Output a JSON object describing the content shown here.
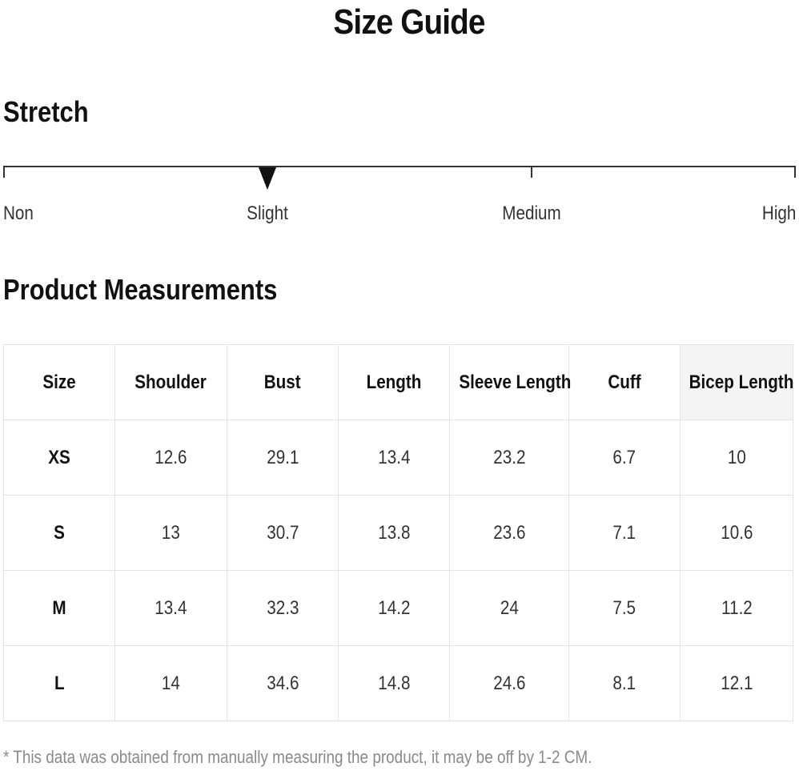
{
  "title": "Size Guide",
  "stretch": {
    "heading": "Stretch",
    "levels": [
      "Non",
      "Slight",
      "Medium",
      "High"
    ],
    "selected": "Slight"
  },
  "measurements": {
    "heading": "Product Measurements",
    "columns": [
      "Size",
      "Shoulder",
      "Bust",
      "Length",
      "Sleeve Length",
      "Cuff",
      "Bicep Length"
    ],
    "rows": [
      [
        "XS",
        "12.6",
        "29.1",
        "13.4",
        "23.2",
        "6.7",
        "10"
      ],
      [
        "S",
        "13",
        "30.7",
        "13.8",
        "23.6",
        "7.1",
        "10.6"
      ],
      [
        "M",
        "13.4",
        "32.3",
        "14.2",
        "24",
        "7.5",
        "11.2"
      ],
      [
        "L",
        "14",
        "34.6",
        "14.8",
        "24.6",
        "8.1",
        "12.1"
      ]
    ]
  },
  "footnote": "* This data was obtained from manually measuring the product, it may be off by 1-2 CM."
}
